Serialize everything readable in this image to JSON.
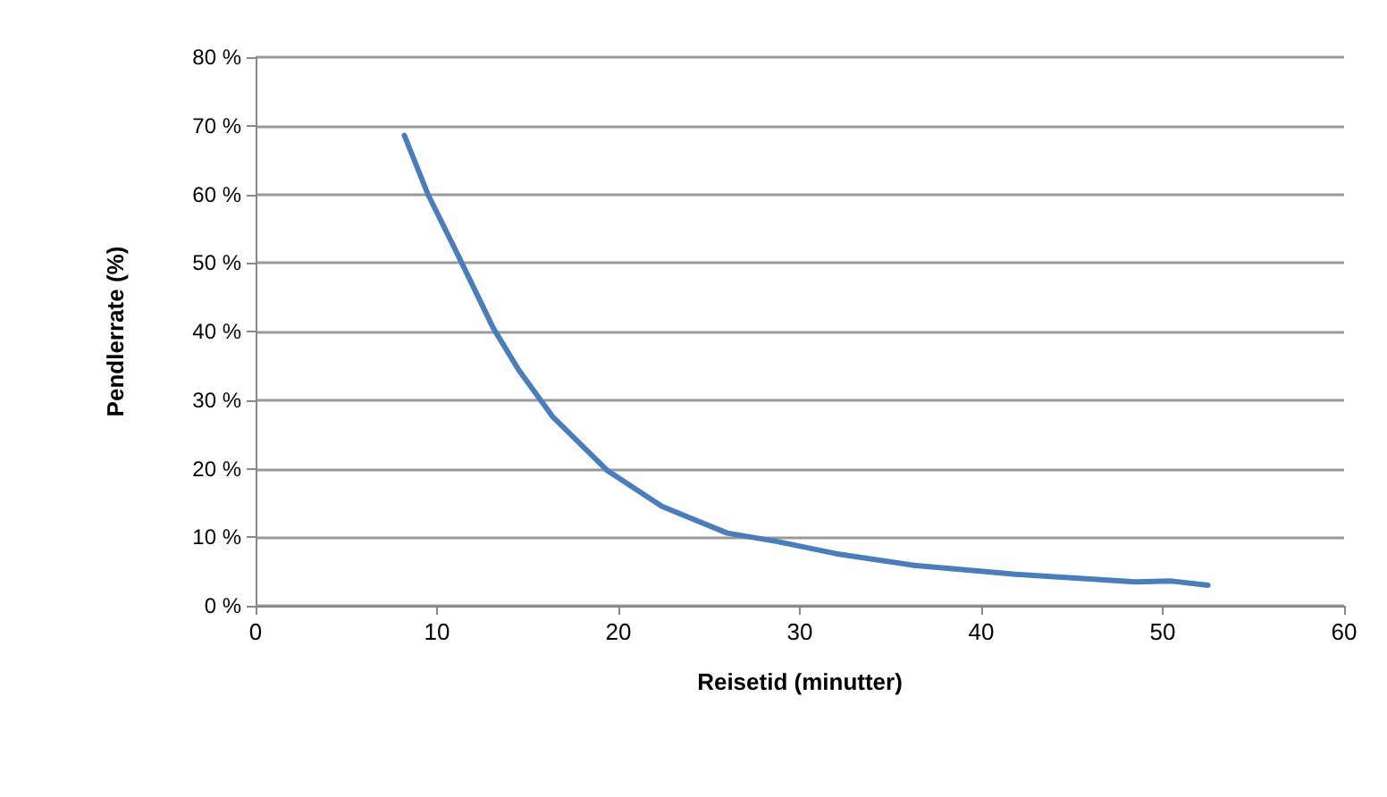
{
  "chart_data": {
    "type": "line",
    "xlabel": "Reisetid (minutter)",
    "ylabel": "Pendlerrate (%)",
    "series": [
      {
        "color": "#4a7ebb",
        "x": [
          8.2,
          9.5,
          11.2,
          13.1,
          14.5,
          16.4,
          19.4,
          22.4,
          26,
          28.7,
          32,
          36.3,
          41.9,
          48.5,
          50.5,
          52.5
        ],
        "values": [
          68.6,
          60,
          50.9,
          40.5,
          34.4,
          27.5,
          19.7,
          14.5,
          10.6,
          9.4,
          7.6,
          5.9,
          4.6,
          3.5,
          3.6,
          3
        ]
      }
    ],
    "xlim": [
      0,
      60
    ],
    "xticks": [
      0,
      10,
      20,
      30,
      40,
      50,
      60
    ],
    "ylim": [
      0,
      80
    ],
    "yticks": [
      {
        "value": 0,
        "label": "0 %"
      },
      {
        "value": 10,
        "label": "10 %"
      },
      {
        "value": 20,
        "label": "20 %"
      },
      {
        "value": 30,
        "label": "30 %"
      },
      {
        "value": 40,
        "label": "40 %"
      },
      {
        "value": 50,
        "label": "50 %"
      },
      {
        "value": 60,
        "label": "60 %"
      },
      {
        "value": 70,
        "label": "70 %"
      },
      {
        "value": 80,
        "label": "80 %"
      }
    ],
    "grid": "y",
    "marker": "none",
    "line_style": "solid"
  }
}
